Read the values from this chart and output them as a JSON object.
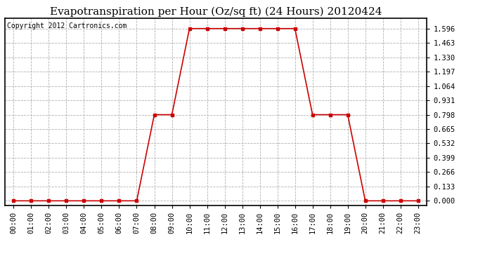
{
  "title": "Evapotranspiration per Hour (Oz/sq ft) (24 Hours) 20120424",
  "copyright_text": "Copyright 2012 Cartronics.com",
  "hours": [
    0,
    1,
    2,
    3,
    4,
    5,
    6,
    7,
    8,
    9,
    10,
    11,
    12,
    13,
    14,
    15,
    16,
    17,
    18,
    19,
    20,
    21,
    22,
    23
  ],
  "values": [
    0.0,
    0.0,
    0.0,
    0.0,
    0.0,
    0.0,
    0.0,
    0.0,
    0.798,
    0.798,
    1.596,
    1.596,
    1.596,
    1.596,
    1.596,
    1.596,
    1.596,
    0.798,
    0.798,
    0.798,
    0.0,
    0.0,
    0.0,
    0.0
  ],
  "x_labels": [
    "00:00",
    "01:00",
    "02:00",
    "03:00",
    "04:00",
    "05:00",
    "06:00",
    "07:00",
    "08:00",
    "09:00",
    "10:00",
    "11:00",
    "12:00",
    "13:00",
    "14:00",
    "15:00",
    "16:00",
    "17:00",
    "18:00",
    "19:00",
    "20:00",
    "21:00",
    "22:00",
    "23:00"
  ],
  "y_ticks": [
    0.0,
    0.133,
    0.266,
    0.399,
    0.532,
    0.665,
    0.798,
    0.931,
    1.064,
    1.197,
    1.33,
    1.463,
    1.596
  ],
  "line_color": "#cc0000",
  "marker": "s",
  "marker_size": 3,
  "background_color": "#ffffff",
  "plot_bg_color": "#ffffff",
  "grid_color": "#b0b0b0",
  "title_fontsize": 11,
  "tick_fontsize": 7.5,
  "copyright_fontsize": 7,
  "ylim": [
    -0.04,
    1.69
  ],
  "xlim": [
    -0.5,
    23.5
  ]
}
